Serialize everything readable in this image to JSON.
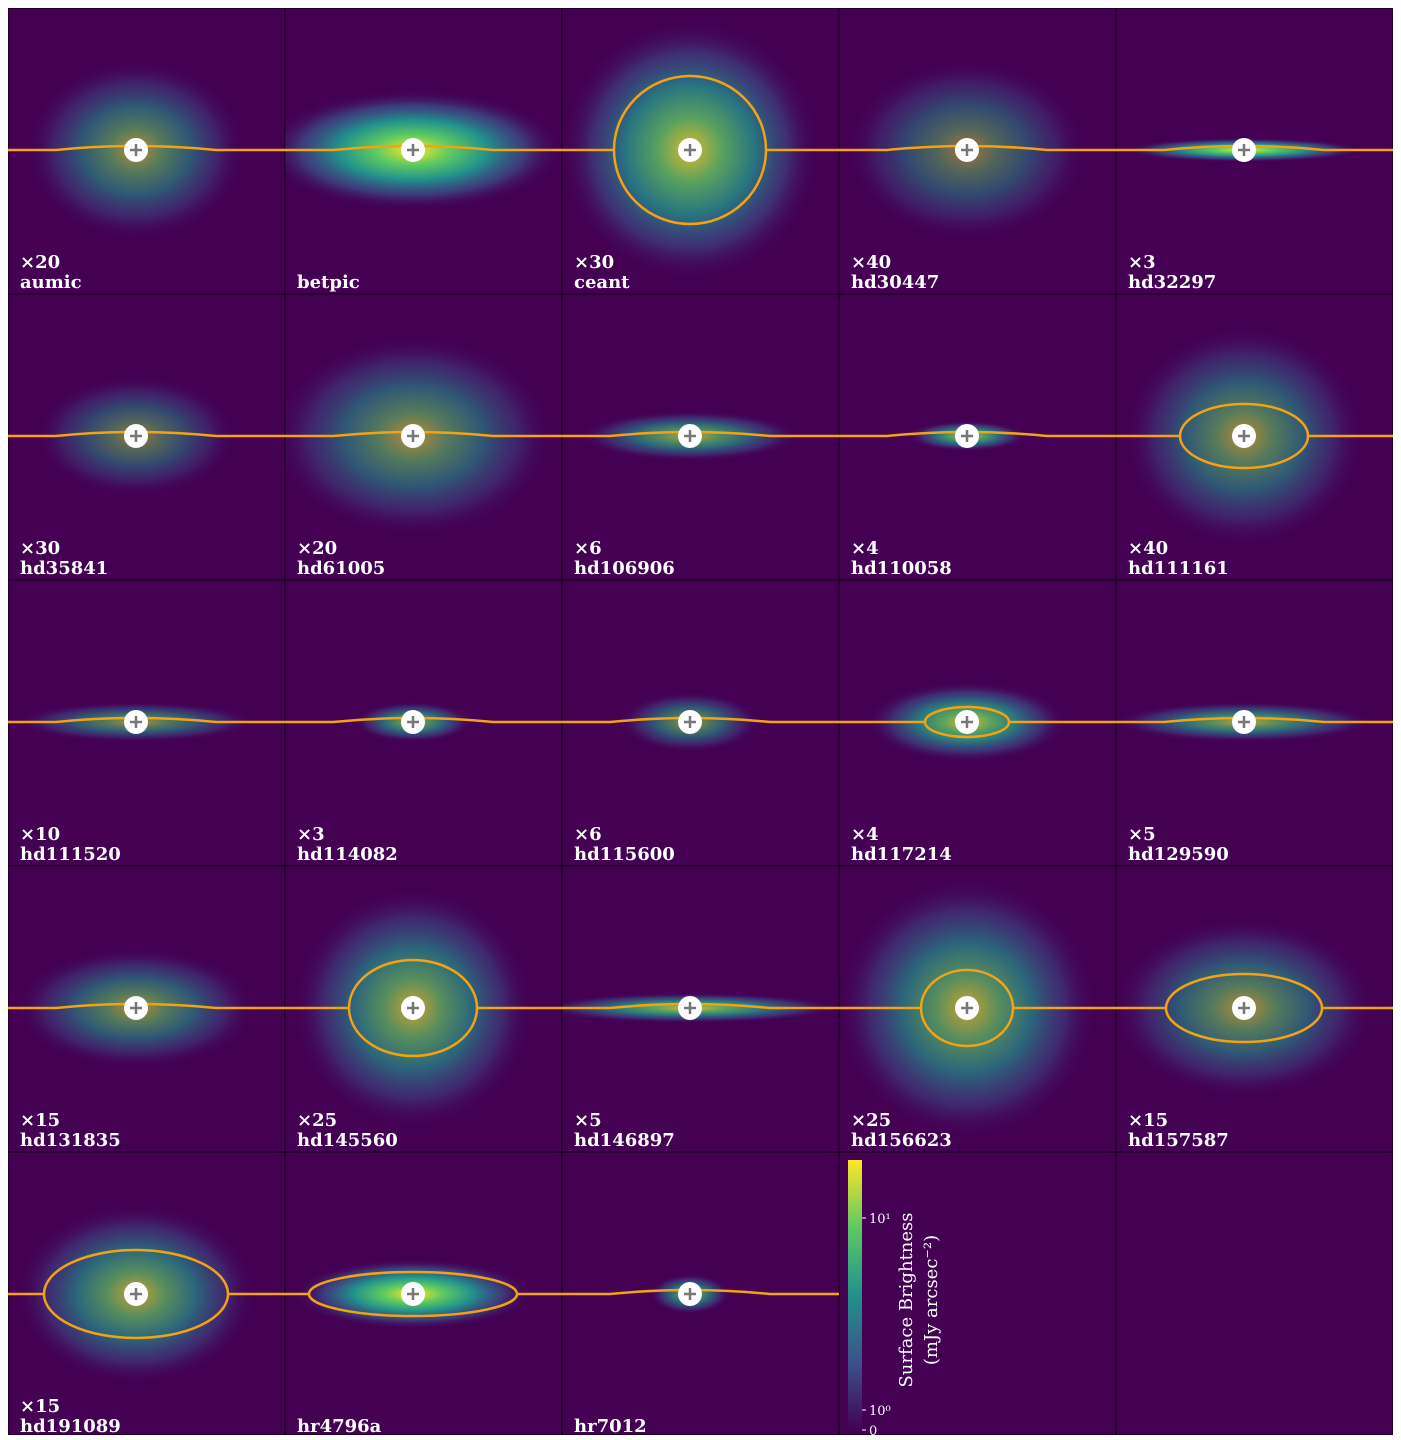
{
  "panels": [
    {
      "label": "aumic",
      "scale": "×20"
    },
    {
      "label": "betpic"
    },
    {
      "label": "ceant",
      "scale": "×30"
    },
    {
      "label": "hd30447",
      "scale": "×40"
    },
    {
      "label": "hd32297",
      "scale": "×3"
    },
    {
      "label": "hd35841",
      "scale": "×30"
    },
    {
      "label": "hd61005",
      "scale": "×20"
    },
    {
      "label": "hd106906",
      "scale": "×6"
    },
    {
      "label": "hd110058",
      "scale": "×4"
    },
    {
      "label": "hd111161",
      "scale": "×40"
    },
    {
      "label": "hd111520",
      "scale": "×10"
    },
    {
      "label": "hd114082",
      "scale": "×3"
    },
    {
      "label": "hd115600",
      "scale": "×6"
    },
    {
      "label": "hd117214",
      "scale": "×4"
    },
    {
      "label": "hd129590",
      "scale": "×5"
    },
    {
      "label": "hd131835",
      "scale": "×15"
    },
    {
      "label": "hd145560",
      "scale": "×25"
    },
    {
      "label": "hd146897",
      "scale": "×5"
    },
    {
      "label": "hd156623",
      "scale": "×25"
    },
    {
      "label": "hd157587",
      "scale": "×15"
    },
    {
      "label": "hd191089",
      "scale": "×15"
    },
    {
      "label": "hr4796a"
    },
    {
      "label": "hr7012"
    }
  ],
  "colorbar": {
    "label": [
      "Surface Brightness",
      "(mJy arcsec⁻²)"
    ],
    "ticks": [
      "10¹",
      "10⁰",
      "0"
    ]
  }
}
